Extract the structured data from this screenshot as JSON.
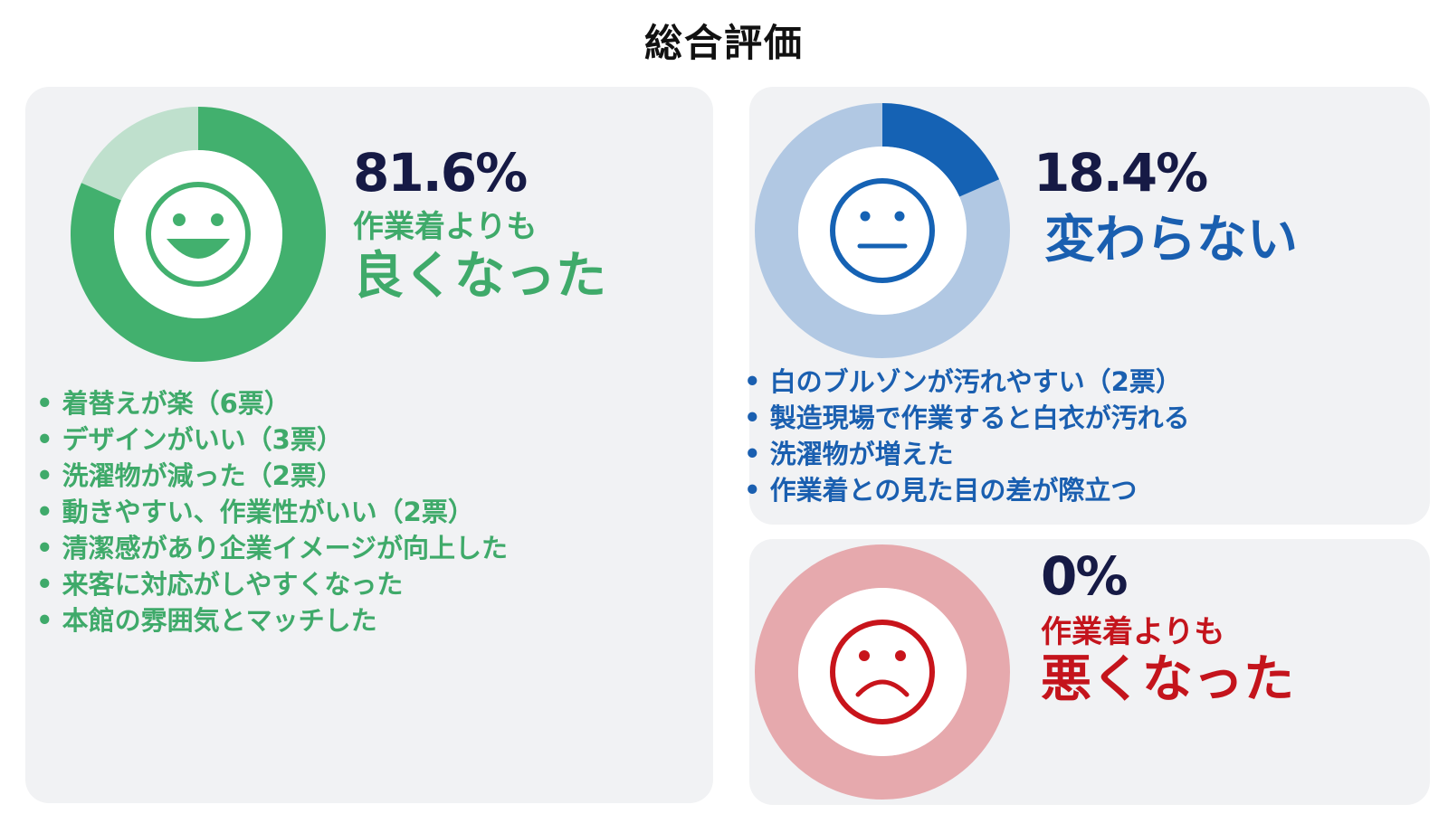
{
  "title": "総合評価",
  "colors": {
    "good": "#42b06e",
    "good_light": "#bfe0cd",
    "same": "#1562b4",
    "same_light": "#b1c8e3",
    "bad": "#c8141b",
    "bad_light": "#e6a9ad",
    "panel": "#f1f2f4",
    "percent_text": "#161a45"
  },
  "chart_data": [
    {
      "type": "pie",
      "variant": "donut",
      "label": "作業着よりも良くなった",
      "value": 81.6,
      "remainder": 18.4,
      "percent_text": "81.6%",
      "heading_line1": "作業着よりも",
      "heading_line2": "良くなった",
      "icon": "smile-face-icon",
      "reasons": [
        "着替えが楽（6票）",
        "デザインがいい（3票）",
        "洗濯物が減った（2票）",
        "動きやすい、作業性がいい（2票）",
        "清潔感があり企業イメージが向上した",
        "来客に対応がしやすくなった",
        "本館の雰囲気とマッチした"
      ]
    },
    {
      "type": "pie",
      "variant": "donut",
      "label": "変わらない",
      "value": 18.4,
      "remainder": 81.6,
      "percent_text": "18.4%",
      "heading_line1": "",
      "heading_line2": "変わらない",
      "icon": "neutral-face-icon",
      "reasons": [
        "白のブルゾンが汚れやすい（2票）",
        "製造現場で作業すると白衣が汚れる",
        "洗濯物が増えた",
        "作業着との見た目の差が際立つ"
      ]
    },
    {
      "type": "pie",
      "variant": "donut",
      "label": "作業着よりも悪くなった",
      "value": 0,
      "remainder": 100,
      "percent_text": "0%",
      "heading_line1": "作業着よりも",
      "heading_line2": "悪くなった",
      "icon": "sad-face-icon",
      "reasons": []
    }
  ]
}
